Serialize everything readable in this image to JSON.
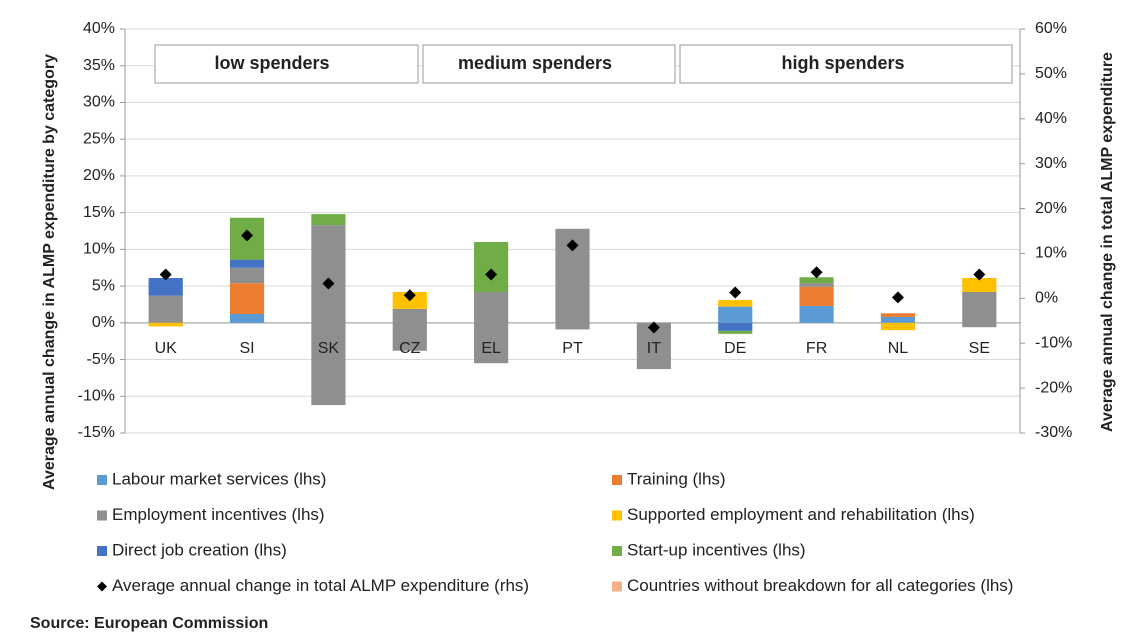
{
  "chart_data": {
    "type": "bar",
    "stacked": true,
    "source": "Source: European Commission",
    "y_label": "Average annual change in ALMP expenditure by category",
    "y2_label": "Average annual change in total ALMP expenditure",
    "annotations": [
      "low spenders",
      "medium spenders",
      "high spenders"
    ],
    "categories": [
      "UK",
      "SI",
      "SK",
      "CZ",
      "EL",
      "PT",
      "IT",
      "DE",
      "FR",
      "NL",
      "SE"
    ],
    "ylim": [
      -15,
      40
    ],
    "yticks": [
      {
        "value": -15,
        "label": "-15%"
      },
      {
        "value": -10,
        "label": "-10%"
      },
      {
        "value": -5,
        "label": "-5%"
      },
      {
        "value": 0,
        "label": "0%"
      },
      {
        "value": 5,
        "label": "5%"
      },
      {
        "value": 10,
        "label": "10%"
      },
      {
        "value": 15,
        "label": "15%"
      },
      {
        "value": 20,
        "label": "20%"
      },
      {
        "value": 25,
        "label": "25%"
      },
      {
        "value": 30,
        "label": "30%"
      },
      {
        "value": 35,
        "label": "35%"
      },
      {
        "value": 40,
        "label": "40%"
      }
    ],
    "y2lim": [
      -30,
      60
    ],
    "y2ticks": [
      {
        "value": -30,
        "label": "-30%"
      },
      {
        "value": -20,
        "label": "-20%"
      },
      {
        "value": -10,
        "label": "-10%"
      },
      {
        "value": 0,
        "label": "0%"
      },
      {
        "value": 10,
        "label": "10%"
      },
      {
        "value": 20,
        "label": "20%"
      },
      {
        "value": 30,
        "label": "30%"
      },
      {
        "value": 40,
        "label": "40%"
      },
      {
        "value": 50,
        "label": "50%"
      },
      {
        "value": 60,
        "label": "60%"
      }
    ],
    "grid": true,
    "series": [
      {
        "name": "Labour market services (lhs)",
        "color": "#5b9bd5",
        "values": [
          null,
          1.2,
          null,
          null,
          null,
          null,
          null,
          2.2,
          2.3,
          0.8,
          null
        ]
      },
      {
        "name": "Training (lhs)",
        "color": "#ed7d31",
        "values": [
          null,
          4.2,
          null,
          null,
          null,
          null,
          null,
          null,
          2.6,
          0.5,
          null
        ]
      },
      {
        "name": "Employment incentives (lhs)",
        "color": "#8f8f8f",
        "values": [
          3.7,
          2.1,
          13.3,
          1.9,
          4.2,
          12.8,
          -6.3,
          null,
          0.5,
          null,
          4.2
        ]
      },
      {
        "name": "Supported employment and rehabilitation (lhs)",
        "color": "#ffc000",
        "values": [
          -0.5,
          null,
          null,
          2.3,
          null,
          null,
          null,
          0.9,
          null,
          -1.0,
          1.9
        ]
      },
      {
        "name": "Direct job creation (lhs)",
        "color": "#4472c4",
        "values": [
          2.4,
          1.1,
          null,
          null,
          null,
          null,
          null,
          -1.1,
          null,
          null,
          null
        ]
      },
      {
        "name": "Start-up incentives (lhs)",
        "color": "#70ad47",
        "values": [
          null,
          5.7,
          1.5,
          null,
          6.8,
          null,
          null,
          -0.4,
          0.8,
          null,
          null
        ]
      },
      {
        "name": "Average annual change in total ALMP expenditure (rhs)",
        "color": "#000000",
        "axis": "y2",
        "marker": "diamond",
        "values": [
          5.3,
          14.0,
          3.3,
          0.7,
          5.3,
          11.8,
          -6.5,
          1.3,
          5.8,
          0.2,
          5.3
        ]
      },
      {
        "name": "Countries without breakdown for all categories (lhs)",
        "color": "#f4b183",
        "values": [
          null,
          null,
          null,
          null,
          null,
          null,
          null,
          null,
          null,
          null,
          null
        ]
      },
      {
        "color": "#8f8f8f",
        "values": [
          null,
          null,
          -11.2,
          -3.8,
          -5.5,
          -0.9,
          null,
          null,
          null,
          null,
          -0.6
        ]
      }
    ]
  }
}
